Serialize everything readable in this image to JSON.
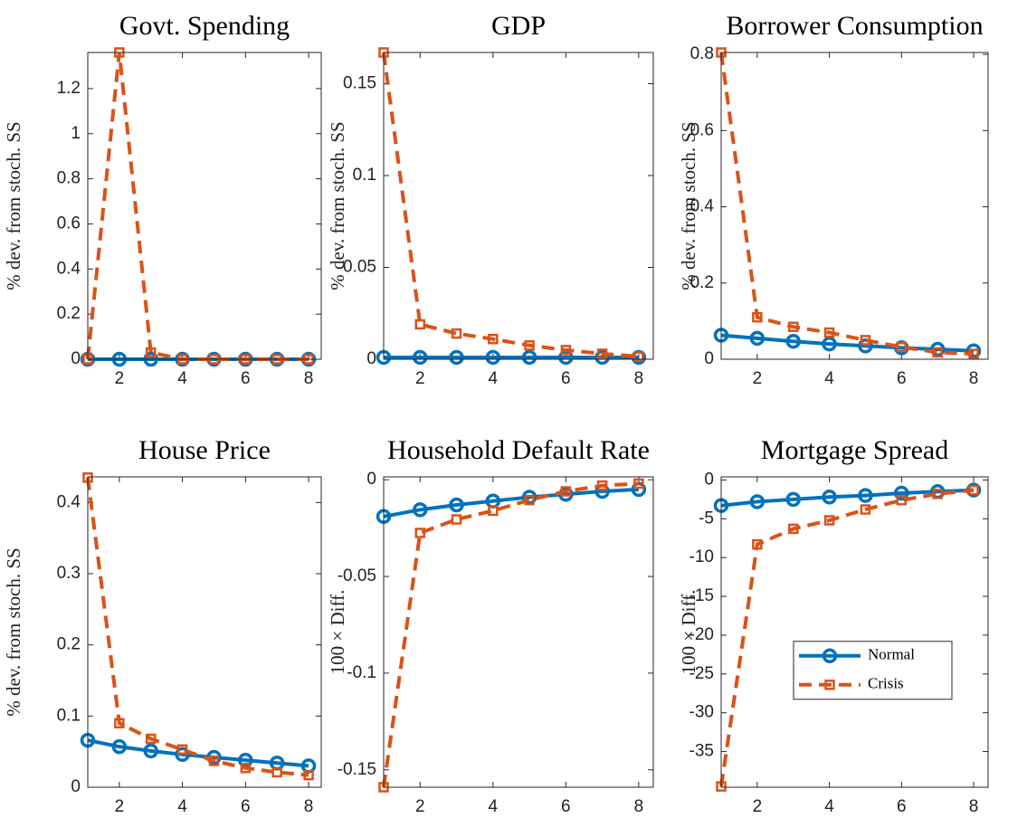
{
  "chart_data": [
    {
      "type": "line",
      "title": "Govt. Spending",
      "ylabel": "% dev. from stoch. SS",
      "x": [
        1,
        2,
        3,
        4,
        5,
        6,
        7,
        8
      ],
      "xlim": [
        1,
        8.4
      ],
      "xticks": [
        2,
        4,
        6,
        8
      ],
      "ylim": [
        0,
        1.36
      ],
      "yticks": [
        0,
        0.2,
        0.4,
        0.6,
        0.8,
        1,
        1.2
      ],
      "series": [
        {
          "color": "#0072bd",
          "marker": "circle",
          "linestyle": "solid",
          "values": [
            0,
            0,
            0,
            0,
            0,
            0,
            0,
            0
          ]
        },
        {
          "color": "#d95319",
          "marker": "square",
          "linestyle": "dashed",
          "values": [
            0,
            1.36,
            0.03,
            0,
            0,
            0,
            0,
            0
          ]
        }
      ]
    },
    {
      "type": "line",
      "title": "GDP",
      "ylabel": "% dev. from stoch. SS",
      "x": [
        1,
        2,
        3,
        4,
        5,
        6,
        7,
        8
      ],
      "xlim": [
        1,
        8.4
      ],
      "xticks": [
        2,
        4,
        6,
        8
      ],
      "ylim": [
        0,
        0.167
      ],
      "yticks": [
        0,
        0.05,
        0.1,
        0.15
      ],
      "series": [
        {
          "color": "#0072bd",
          "marker": "circle",
          "linestyle": "solid",
          "values": [
            0.001,
            0.001,
            0.001,
            0.001,
            0.001,
            0.001,
            0.001,
            0.001
          ]
        },
        {
          "color": "#d95319",
          "marker": "square",
          "linestyle": "dashed",
          "values": [
            0.167,
            0.019,
            0.014,
            0.011,
            0.0075,
            0.005,
            0.003,
            0.0015
          ]
        }
      ]
    },
    {
      "type": "line",
      "title": "Borrower Consumption",
      "ylabel": "% dev. from stoch. SS",
      "x": [
        1,
        2,
        3,
        4,
        5,
        6,
        7,
        8
      ],
      "xlim": [
        1,
        8.4
      ],
      "xticks": [
        2,
        4,
        6,
        8
      ],
      "ylim": [
        0,
        0.805
      ],
      "yticks": [
        0,
        0.2,
        0.4,
        0.6,
        0.8
      ],
      "series": [
        {
          "color": "#0072bd",
          "marker": "circle",
          "linestyle": "solid",
          "values": [
            0.063,
            0.055,
            0.047,
            0.04,
            0.035,
            0.03,
            0.026,
            0.022
          ]
        },
        {
          "color": "#d95319",
          "marker": "square",
          "linestyle": "dashed",
          "values": [
            0.805,
            0.11,
            0.085,
            0.07,
            0.05,
            0.032,
            0.018,
            0.014
          ]
        }
      ]
    },
    {
      "type": "line",
      "title": "House Price",
      "ylabel": "% dev. from stoch. SS",
      "x": [
        1,
        2,
        3,
        4,
        5,
        6,
        7,
        8
      ],
      "xlim": [
        1,
        8.4
      ],
      "xticks": [
        2,
        4,
        6,
        8
      ],
      "ylim": [
        0,
        0.436
      ],
      "yticks": [
        0,
        0.1,
        0.2,
        0.3,
        0.4
      ],
      "series": [
        {
          "color": "#0072bd",
          "marker": "circle",
          "linestyle": "solid",
          "values": [
            0.066,
            0.057,
            0.051,
            0.046,
            0.042,
            0.038,
            0.034,
            0.03
          ]
        },
        {
          "color": "#d95319",
          "marker": "square",
          "linestyle": "dashed",
          "values": [
            0.435,
            0.09,
            0.068,
            0.053,
            0.037,
            0.027,
            0.021,
            0.017
          ]
        }
      ]
    },
    {
      "type": "line",
      "title": "Household Default Rate",
      "ylabel": "100 × Diff.",
      "x": [
        1,
        2,
        3,
        4,
        5,
        6,
        7,
        8
      ],
      "xlim": [
        1,
        8.4
      ],
      "xticks": [
        2,
        4,
        6,
        8
      ],
      "ylim": [
        -0.159,
        0.0015
      ],
      "yticks": [
        -0.15,
        -0.1,
        -0.05,
        0
      ],
      "series": [
        {
          "color": "#0072bd",
          "marker": "circle",
          "linestyle": "solid",
          "values": [
            -0.019,
            -0.0155,
            -0.013,
            -0.011,
            -0.009,
            -0.0075,
            -0.006,
            -0.005
          ]
        },
        {
          "color": "#d95319",
          "marker": "square",
          "linestyle": "dashed",
          "values": [
            -0.159,
            -0.0275,
            -0.0205,
            -0.016,
            -0.0105,
            -0.006,
            -0.003,
            -0.002
          ]
        }
      ]
    },
    {
      "type": "line",
      "title": "Mortgage Spread",
      "ylabel": "100 × Diff.",
      "x": [
        1,
        2,
        3,
        4,
        5,
        6,
        7,
        8
      ],
      "xlim": [
        1,
        8.4
      ],
      "xticks": [
        2,
        4,
        6,
        8
      ],
      "ylim": [
        -39.6,
        0.4
      ],
      "yticks": [
        -35,
        -30,
        -25,
        -20,
        -15,
        -10,
        -5,
        0
      ],
      "legend": "right",
      "series": [
        {
          "name": "Normal",
          "color": "#0072bd",
          "marker": "circle",
          "linestyle": "solid",
          "values": [
            -3.3,
            -2.8,
            -2.5,
            -2.2,
            -2,
            -1.7,
            -1.5,
            -1.3
          ]
        },
        {
          "name": "Crisis",
          "color": "#d95319",
          "marker": "square",
          "linestyle": "dashed",
          "values": [
            -39.5,
            -8.3,
            -6.3,
            -5.2,
            -3.8,
            -2.6,
            -1.8,
            -1.3
          ]
        }
      ]
    }
  ]
}
